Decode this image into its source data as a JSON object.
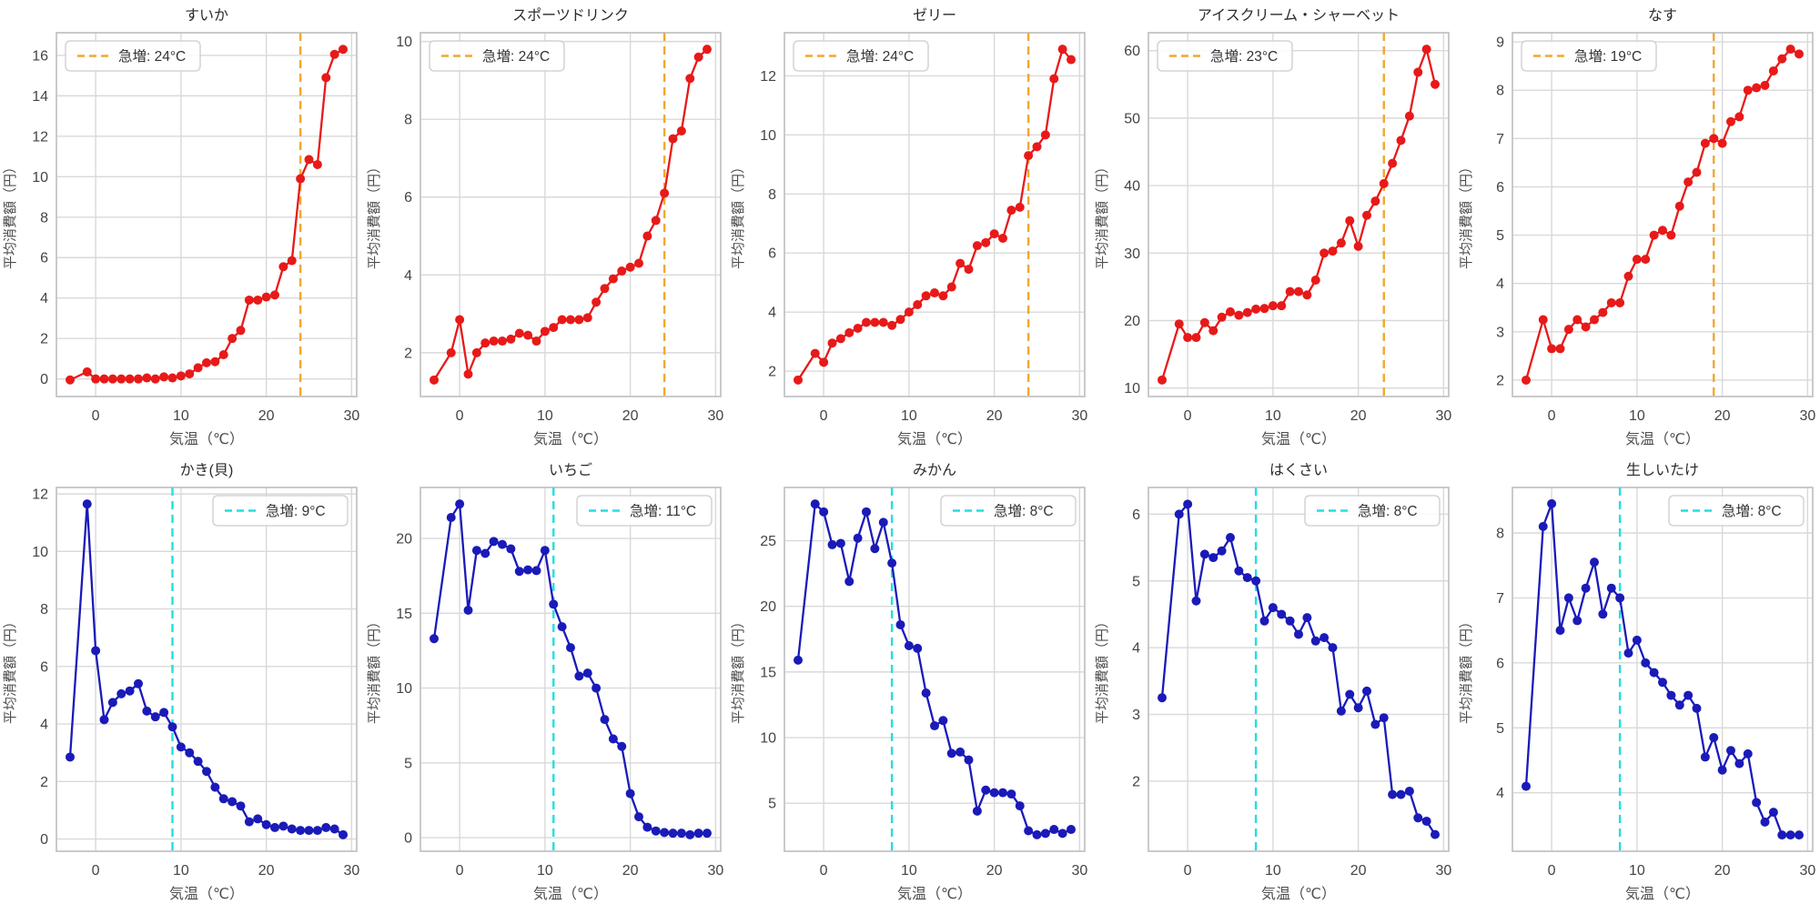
{
  "figure": {
    "background": "#ffffff",
    "rows": 2,
    "cols": 5
  },
  "shared": {
    "xlabel": "気温（℃）",
    "ylabel": "平均消費額（円）",
    "xticks": [
      0,
      10,
      20,
      30
    ],
    "xlim": [
      -4.6,
      30.6
    ],
    "x_values": [
      -3,
      -1,
      0,
      1,
      2,
      3,
      4,
      5,
      6,
      7,
      8,
      9,
      10,
      11,
      12,
      13,
      14,
      15,
      16,
      17,
      18,
      19,
      20,
      21,
      22,
      23,
      24,
      25,
      26,
      27,
      28,
      29
    ],
    "legend_prefix": "急増"
  },
  "colors": {
    "warm_line": "#e81919",
    "warm_vline": "#f2a72e",
    "cold_line": "#1a1ab9",
    "cold_vline": "#22dfe2",
    "grid": "#d9d9d9",
    "border": "#c4c4c4",
    "tick_text": "#444444",
    "title_text": "#2b2b2b",
    "label_text": "#4d4d4d"
  },
  "chart_data": [
    {
      "type": "line",
      "name": "suika",
      "title": "すいか",
      "line_color": "#e81919",
      "vline_x": 24,
      "vline_color": "#f2a72e",
      "legend_label": "急増: 24°C",
      "legend_position": "top-left",
      "yticks": [
        0,
        2,
        4,
        6,
        8,
        10,
        12,
        14,
        16
      ],
      "ylim": [
        -0.87,
        17.12
      ],
      "values": [
        -0.05,
        0.35,
        0,
        0,
        0,
        0,
        0,
        0,
        0.05,
        0,
        0.1,
        0.05,
        0.15,
        0.25,
        0.55,
        0.8,
        0.85,
        1.2,
        2.0,
        2.4,
        3.9,
        3.9,
        4.05,
        4.15,
        5.55,
        5.85,
        9.9,
        10.85,
        10.6,
        14.9,
        16.05,
        16.3
      ]
    },
    {
      "type": "line",
      "name": "sports-drink",
      "title": "スポーツドリンク",
      "line_color": "#e81919",
      "vline_x": 24,
      "vline_color": "#f2a72e",
      "legend_label": "急増: 24°C",
      "legend_position": "top-left",
      "yticks": [
        2,
        4,
        6,
        8,
        10
      ],
      "ylim": [
        0.875,
        10.225
      ],
      "values": [
        1.3,
        2.0,
        2.85,
        1.45,
        2.0,
        2.25,
        2.3,
        2.3,
        2.35,
        2.5,
        2.45,
        2.3,
        2.55,
        2.65,
        2.85,
        2.85,
        2.85,
        2.9,
        3.3,
        3.65,
        3.9,
        4.1,
        4.2,
        4.3,
        5.0,
        5.4,
        6.1,
        7.5,
        7.7,
        9.05,
        9.6,
        9.8
      ]
    },
    {
      "type": "line",
      "name": "jelly",
      "title": "ゼリー",
      "line_color": "#e81919",
      "vline_x": 24,
      "vline_color": "#f2a72e",
      "legend_label": "急増: 24°C",
      "legend_position": "top-left",
      "yticks": [
        2,
        4,
        6,
        8,
        10,
        12
      ],
      "ylim": [
        1.14,
        13.46
      ],
      "values": [
        1.7,
        2.6,
        2.3,
        2.95,
        3.1,
        3.3,
        3.45,
        3.65,
        3.65,
        3.65,
        3.55,
        3.75,
        4.0,
        4.25,
        4.55,
        4.65,
        4.55,
        4.85,
        5.65,
        5.45,
        6.25,
        6.35,
        6.65,
        6.5,
        7.45,
        7.55,
        9.3,
        9.6,
        10.0,
        11.9,
        12.9,
        12.55
      ]
    },
    {
      "type": "line",
      "name": "ice-cream-sherbet",
      "title": "アイスクリーム・シャーベット",
      "line_color": "#e81919",
      "vline_x": 23,
      "vline_color": "#f2a72e",
      "legend_label": "急増: 23°C",
      "legend_position": "top-left",
      "yticks": [
        10,
        20,
        30,
        40,
        50,
        60
      ],
      "ylim": [
        8.75,
        62.65
      ],
      "values": [
        11.2,
        19.5,
        17.5,
        17.5,
        19.7,
        18.5,
        20.5,
        21.3,
        20.8,
        21.2,
        21.7,
        21.8,
        22.2,
        22.2,
        24.3,
        24.3,
        23.8,
        26.0,
        30.0,
        30.3,
        31.5,
        34.8,
        31.0,
        35.6,
        37.7,
        40.3,
        43.3,
        46.7,
        50.3,
        56.8,
        60.2,
        55.0
      ]
    },
    {
      "type": "line",
      "name": "nasu-eggplant",
      "title": "なす",
      "line_color": "#e81919",
      "vline_x": 19,
      "vline_color": "#f2a72e",
      "legend_label": "急増: 19°C",
      "legend_position": "top-left",
      "yticks": [
        2,
        3,
        4,
        5,
        6,
        7,
        8,
        9
      ],
      "ylim": [
        1.66,
        9.19
      ],
      "values": [
        2.0,
        3.25,
        2.65,
        2.65,
        3.05,
        3.25,
        3.1,
        3.25,
        3.4,
        3.6,
        3.6,
        4.15,
        4.5,
        4.5,
        5.0,
        5.1,
        5.0,
        5.6,
        6.1,
        6.3,
        6.9,
        7.0,
        6.9,
        7.35,
        7.45,
        8.0,
        8.05,
        8.1,
        8.4,
        8.65,
        8.85,
        8.75
      ]
    },
    {
      "type": "line",
      "name": "kaki-oyster",
      "title": "かき(貝)",
      "line_color": "#1a1ab9",
      "vline_x": 9,
      "vline_color": "#22dfe2",
      "legend_label": "急増: 9°C",
      "legend_position": "top-right",
      "yticks": [
        0,
        2,
        4,
        6,
        8,
        10,
        12
      ],
      "ylim": [
        -0.425,
        12.225
      ],
      "values": [
        2.85,
        11.65,
        6.55,
        4.15,
        4.75,
        5.05,
        5.15,
        5.4,
        4.45,
        4.25,
        4.4,
        3.9,
        3.2,
        3.0,
        2.7,
        2.35,
        1.8,
        1.4,
        1.3,
        1.15,
        0.6,
        0.7,
        0.5,
        0.4,
        0.45,
        0.35,
        0.3,
        0.3,
        0.3,
        0.4,
        0.35,
        0.15
      ]
    },
    {
      "type": "line",
      "name": "ichigo-strawberry",
      "title": "いちご",
      "line_color": "#1a1ab9",
      "vline_x": 11,
      "vline_color": "#22dfe2",
      "legend_label": "急増: 11°C",
      "legend_position": "top-right",
      "yticks": [
        0,
        5,
        10,
        15,
        20
      ],
      "ylim": [
        -0.905,
        23.405
      ],
      "values": [
        13.3,
        21.4,
        22.3,
        15.2,
        19.2,
        19.0,
        19.8,
        19.6,
        19.3,
        17.8,
        17.9,
        17.85,
        19.2,
        15.6,
        14.1,
        12.7,
        10.8,
        11.0,
        10.0,
        7.9,
        6.6,
        6.1,
        2.95,
        1.4,
        0.7,
        0.45,
        0.35,
        0.3,
        0.3,
        0.2,
        0.3,
        0.3
      ]
    },
    {
      "type": "line",
      "name": "mikan-mandarin",
      "title": "みかん",
      "line_color": "#1a1ab9",
      "vline_x": 8,
      "vline_color": "#22dfe2",
      "legend_label": "急増: 8°C",
      "legend_position": "top-right",
      "yticks": [
        5,
        10,
        15,
        20,
        25
      ],
      "ylim": [
        1.34,
        29.06
      ],
      "values": [
        15.9,
        27.8,
        27.2,
        24.7,
        24.8,
        21.9,
        25.2,
        27.2,
        24.4,
        26.4,
        23.3,
        18.6,
        17.0,
        16.8,
        13.4,
        10.9,
        11.3,
        8.8,
        8.9,
        8.3,
        4.4,
        6.0,
        5.8,
        5.8,
        5.7,
        4.8,
        2.9,
        2.6,
        2.7,
        3.0,
        2.7,
        3.0
      ]
    },
    {
      "type": "line",
      "name": "hakusai-cabbage",
      "title": "はくさい",
      "line_color": "#1a1ab9",
      "vline_x": 8,
      "vline_color": "#22dfe2",
      "legend_label": "急増: 8°C",
      "legend_position": "top-right",
      "yticks": [
        2,
        3,
        4,
        5,
        6
      ],
      "ylim": [
        0.95,
        6.4
      ],
      "values": [
        3.25,
        6.0,
        6.15,
        4.7,
        5.4,
        5.35,
        5.45,
        5.65,
        5.15,
        5.05,
        5.0,
        4.4,
        4.6,
        4.5,
        4.4,
        4.2,
        4.45,
        4.1,
        4.15,
        4.0,
        3.05,
        3.3,
        3.1,
        3.35,
        2.85,
        2.95,
        1.8,
        1.8,
        1.85,
        1.45,
        1.4,
        1.2
      ]
    },
    {
      "type": "line",
      "name": "nama-shiitake",
      "title": "生しいたけ",
      "line_color": "#1a1ab9",
      "vline_x": 8,
      "vline_color": "#22dfe2",
      "legend_label": "急増: 8°C",
      "legend_position": "top-right",
      "yticks": [
        4,
        5,
        6,
        7,
        8
      ],
      "ylim": [
        3.1,
        8.7
      ],
      "values": [
        4.1,
        8.1,
        8.45,
        6.5,
        7.0,
        6.65,
        7.15,
        7.55,
        6.75,
        7.15,
        7.0,
        6.15,
        6.35,
        6.0,
        5.85,
        5.7,
        5.5,
        5.35,
        5.5,
        5.3,
        4.55,
        4.85,
        4.35,
        4.65,
        4.45,
        4.6,
        3.85,
        3.55,
        3.7,
        3.35,
        3.35,
        3.35
      ]
    }
  ]
}
